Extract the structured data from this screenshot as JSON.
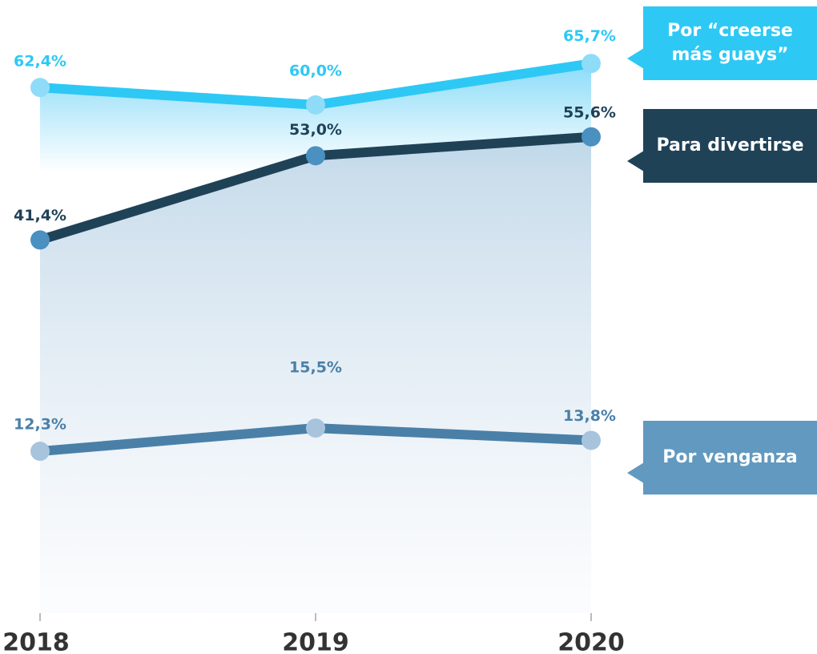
{
  "chart_data": {
    "type": "line",
    "categories": [
      "2018",
      "2019",
      "2020"
    ],
    "series": [
      {
        "name": "Por “creerse más guays”",
        "color": "#2ec8f5",
        "marker_color": "#8fdcf8",
        "legend_color": "#2ec8f5",
        "values": [
          62.4,
          60.0,
          65.7
        ],
        "value_labels": [
          "62,4%",
          "60,0%",
          "65,7%"
        ]
      },
      {
        "name": "Para divertirse",
        "color": "#1f4257",
        "marker_color": "#4a90c0",
        "legend_color": "#1f4257",
        "values": [
          41.4,
          53.0,
          55.6
        ],
        "value_labels": [
          "41,4%",
          "53,0%",
          "55,6%"
        ]
      },
      {
        "name": "Por venganza",
        "color": "#4a80a8",
        "marker_color": "#a8c4dc",
        "legend_color": "#6199c0",
        "values": [
          12.3,
          15.5,
          13.8
        ],
        "value_labels": [
          "12,3%",
          "15,5%",
          "13,8%"
        ]
      }
    ]
  }
}
